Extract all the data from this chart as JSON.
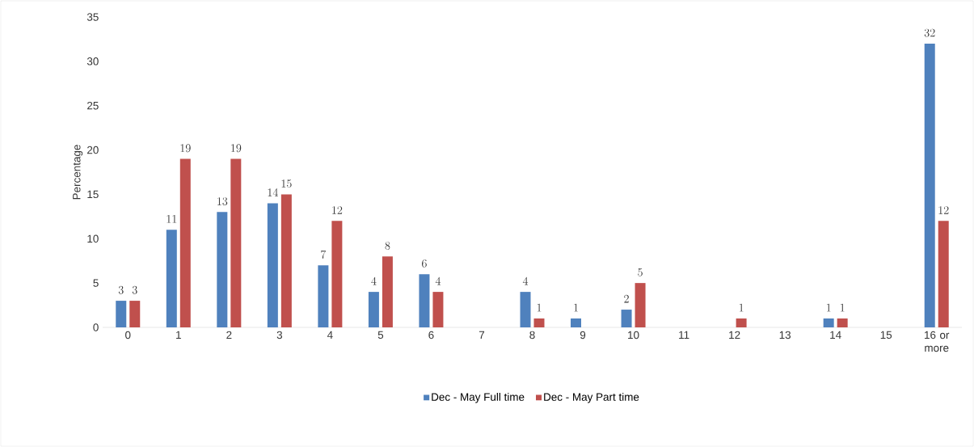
{
  "chart_data": {
    "type": "bar",
    "ylabel": "Percentage",
    "categories": [
      "0",
      "1",
      "2",
      "3",
      "4",
      "5",
      "6",
      "7",
      "8",
      "9",
      "10",
      "11",
      "12",
      "13",
      "14",
      "15",
      "16 or more"
    ],
    "series": [
      {
        "name": "Dec - May Full time",
        "color": "#4f81bd",
        "values": [
          3,
          11,
          13,
          14,
          7,
          4,
          6,
          null,
          4,
          1,
          2,
          null,
          null,
          null,
          1,
          null,
          32
        ]
      },
      {
        "name": "Dec - May Part time",
        "color": "#c0504d",
        "values": [
          3,
          19,
          19,
          15,
          12,
          8,
          4,
          null,
          1,
          null,
          5,
          null,
          1,
          null,
          1,
          null,
          12
        ]
      }
    ],
    "ylim": [
      0,
      35
    ],
    "yticks": [
      0,
      5,
      10,
      15,
      20,
      25,
      30,
      35
    ],
    "grid": false,
    "legend": "bottom",
    "data_labels": true
  }
}
